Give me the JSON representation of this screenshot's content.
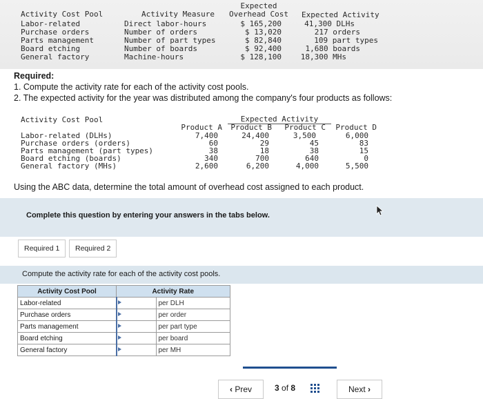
{
  "top_table": {
    "headers": {
      "pool": "Activity Cost Pool",
      "measure": "Activity Measure",
      "overhead_1": "Expected",
      "overhead_2": "Overhead Cost",
      "activity": "Expected Activity"
    },
    "rows": [
      {
        "pool": "Labor-related",
        "measure": "Direct labor-hours",
        "cost": "$ 165,200",
        "activity": "41,300 DLHs"
      },
      {
        "pool": "Purchase orders",
        "measure": "Number of orders",
        "cost": "$ 13,020",
        "activity": "217 orders"
      },
      {
        "pool": "Parts management",
        "measure": "Number of part types",
        "cost": "$ 82,840",
        "activity": "109 part types"
      },
      {
        "pool": "Board etching",
        "measure": "Number of boards",
        "cost": "$ 92,400",
        "activity": "1,680 boards"
      },
      {
        "pool": "General factory",
        "measure": "Machine-hours",
        "cost": "$ 128,100",
        "activity": "18,300 MHs"
      }
    ]
  },
  "required": {
    "heading": "Required:",
    "item1": "1. Compute the activity rate for each of the activity cost pools.",
    "item2": "2. The expected activity for the year was distributed among the company's four products as follows:"
  },
  "dist_table": {
    "pool_header": "Activity Cost Pool",
    "group_header": "Expected Activity",
    "products": [
      "Product A",
      "Product B",
      "Product C",
      "Product D"
    ],
    "rows": [
      {
        "label": "Labor-related (DLHs)",
        "values": [
          "7,400",
          "24,400",
          "3,500",
          "6,000"
        ]
      },
      {
        "label": "Purchase orders (orders)",
        "values": [
          "60",
          "29",
          "45",
          "83"
        ]
      },
      {
        "label": "Parts management (part types)",
        "values": [
          "38",
          "18",
          "38",
          "15"
        ]
      },
      {
        "label": "Board etching (boards)",
        "values": [
          "340",
          "700",
          "640",
          "0"
        ]
      },
      {
        "label": "General factory (MHs)",
        "values": [
          "2,600",
          "6,200",
          "4,000",
          "5,500"
        ]
      }
    ]
  },
  "abc_question": "Using the ABC data, determine the total amount of overhead cost assigned to each product.",
  "banner": "Complete this question by entering your answers in the tabs below.",
  "tabs": [
    "Required 1",
    "Required 2"
  ],
  "instruction": "Compute the activity rate for each of the activity cost pools.",
  "rate_table": {
    "headers": [
      "Activity Cost Pool",
      "Activity Rate"
    ],
    "rows": [
      {
        "pool": "Labor-related",
        "value": "",
        "unit": "per DLH"
      },
      {
        "pool": "Purchase orders",
        "value": "",
        "unit": "per order"
      },
      {
        "pool": "Parts management",
        "value": "",
        "unit": "per part type"
      },
      {
        "pool": "Board etching",
        "value": "",
        "unit": "per board"
      },
      {
        "pool": "General factory",
        "value": "",
        "unit": "per MH"
      }
    ]
  },
  "nav": {
    "prev": "Prev",
    "page_current": "3",
    "page_of": "of",
    "page_total": "8",
    "next": "Next",
    "prev_icon": "chevron-left-icon",
    "next_icon": "chevron-right-icon",
    "grid_icon": "grid-icon",
    "accent": "#1f4f8f"
  }
}
